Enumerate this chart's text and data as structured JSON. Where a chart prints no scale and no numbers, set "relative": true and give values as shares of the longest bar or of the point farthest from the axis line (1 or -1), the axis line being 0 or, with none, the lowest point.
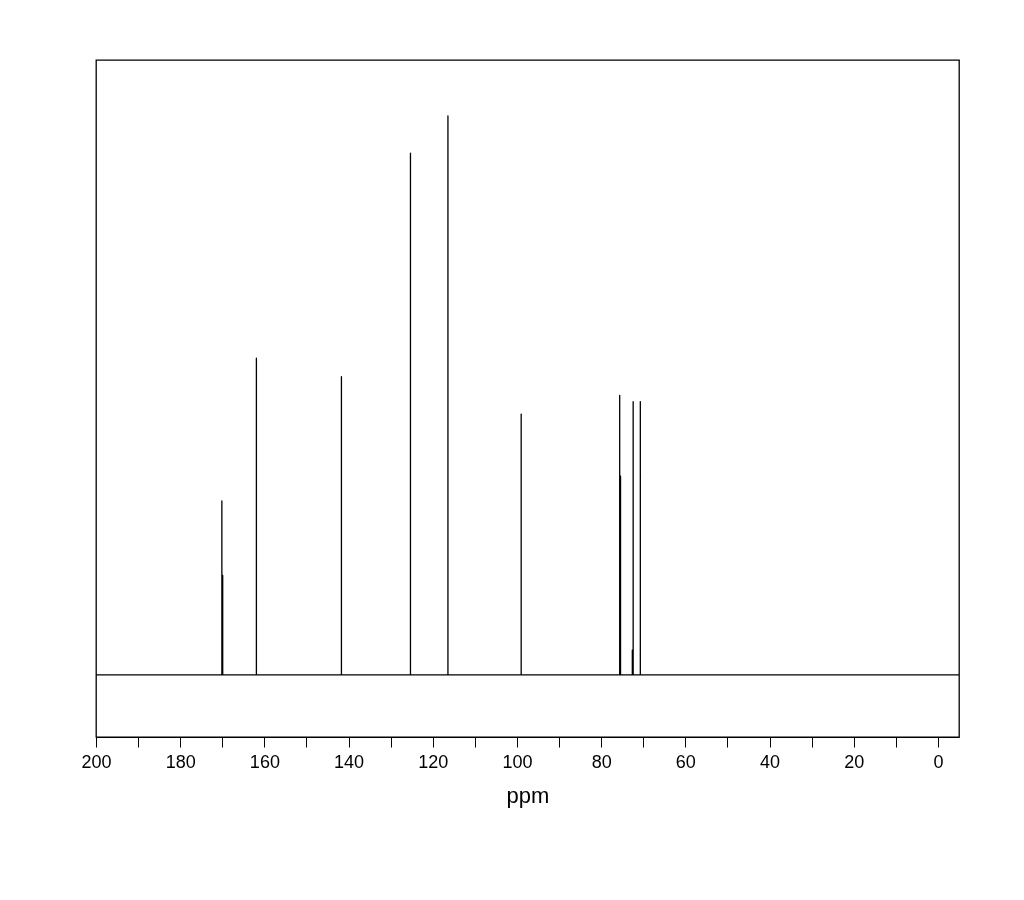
{
  "chart_data": {
    "type": "line",
    "relative": true,
    "xlabel": "ppm",
    "x": [
      200,
      170.1,
      170.1,
      170.1,
      169.9,
      169.9,
      169.9,
      161.9,
      161.9,
      161.9,
      141.7,
      141.7,
      141.7,
      125.3,
      125.3,
      125.3,
      116.4,
      116.4,
      116.4,
      99.0,
      99.0,
      99.0,
      75.6,
      75.6,
      75.6,
      75.4,
      75.4,
      75.4,
      72.6,
      72.6,
      72.6,
      72.4,
      72.4,
      72.4,
      70.7,
      70.7,
      70.7,
      -5
    ],
    "series": [
      {
        "color": "#000000",
        "values": [
          0.1,
          0.1,
          0.38,
          0.1,
          0.1,
          0.26,
          0.1,
          0.1,
          0.61,
          0.1,
          0.1,
          0.58,
          0.1,
          0.1,
          0.94,
          0.1,
          0.1,
          1.0,
          0.1,
          0.1,
          0.52,
          0.1,
          0.1,
          0.55,
          0.1,
          0.1,
          0.42,
          0.1,
          0.1,
          0.14,
          0.1,
          0.1,
          0.54,
          0.1,
          0.1,
          0.54,
          0.1,
          0.1
        ]
      }
    ],
    "xlim": [
      200,
      -5
    ],
    "xticks": [
      200,
      {
        "value": 190,
        "label": null
      },
      180,
      {
        "value": 170,
        "label": null
      },
      160,
      {
        "value": 150,
        "label": null
      },
      140,
      {
        "value": 130,
        "label": null
      },
      120,
      {
        "value": 110,
        "label": null
      },
      100,
      {
        "value": 90,
        "label": null
      },
      80,
      {
        "value": 70,
        "label": null
      },
      60,
      {
        "value": 50,
        "label": null
      },
      40,
      {
        "value": 30,
        "label": null
      },
      20,
      {
        "value": 10,
        "label": null
      },
      0
    ],
    "grid": false,
    "marker": "none"
  }
}
